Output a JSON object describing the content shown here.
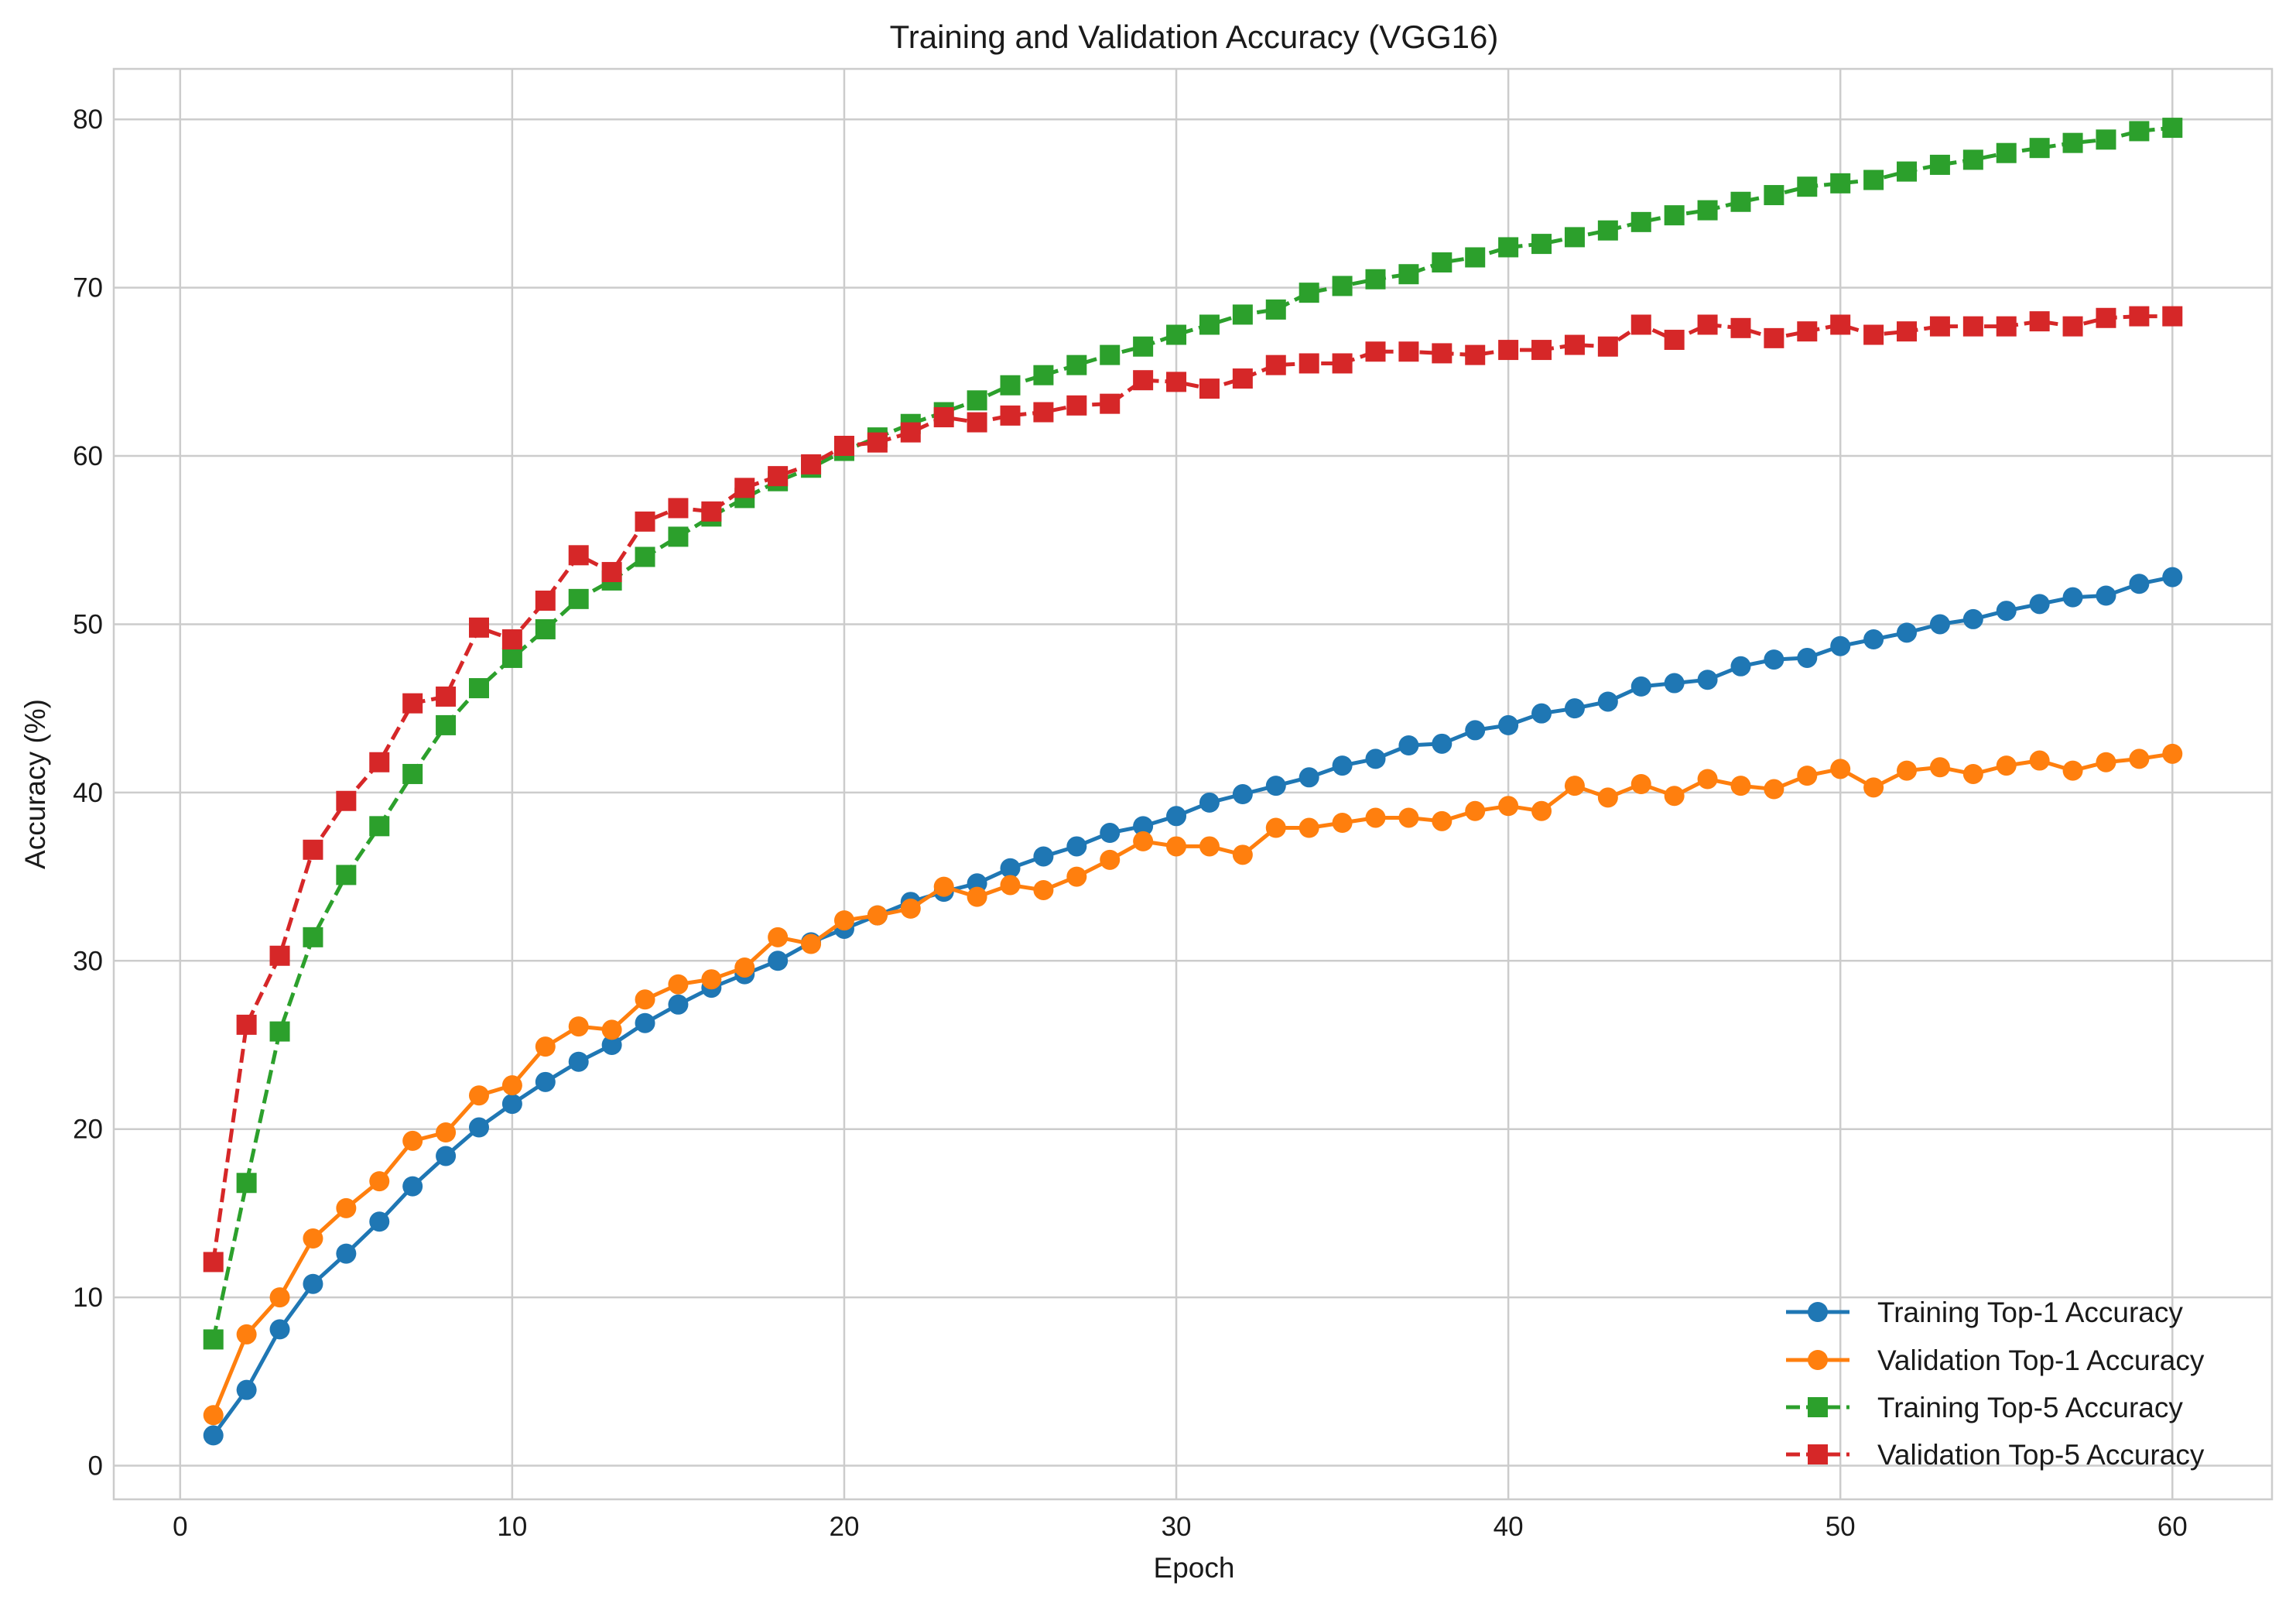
{
  "chart_data": {
    "type": "line",
    "title": "Training and Validation Accuracy (VGG16)",
    "xlabel": "Epoch",
    "ylabel": "Accuracy (%)",
    "xlim": [
      -2,
      63
    ],
    "ylim": [
      -2,
      83
    ],
    "xticks": [
      0,
      10,
      20,
      30,
      40,
      50,
      60
    ],
    "yticks": [
      0,
      10,
      20,
      30,
      40,
      50,
      60,
      70,
      80
    ],
    "grid": true,
    "legend_position": "lower-right",
    "x": [
      1,
      2,
      3,
      4,
      5,
      6,
      7,
      8,
      9,
      10,
      11,
      12,
      13,
      14,
      15,
      16,
      17,
      18,
      19,
      20,
      21,
      22,
      23,
      24,
      25,
      26,
      27,
      28,
      29,
      30,
      31,
      32,
      33,
      34,
      35,
      36,
      37,
      38,
      39,
      40,
      41,
      42,
      43,
      44,
      45,
      46,
      47,
      48,
      49,
      50,
      51,
      52,
      53,
      54,
      55,
      56,
      57,
      58,
      59,
      60
    ],
    "series": [
      {
        "name": "Training Top-1 Accuracy",
        "color": "#1f77b4",
        "marker": "circle",
        "linestyle": "solid",
        "values": [
          1.8,
          4.5,
          8.1,
          10.8,
          12.6,
          14.5,
          16.6,
          18.4,
          20.1,
          21.5,
          22.8,
          24.0,
          25.0,
          26.3,
          27.4,
          28.4,
          29.2,
          30.0,
          31.1,
          31.9,
          32.7,
          33.5,
          34.1,
          34.6,
          35.5,
          36.2,
          36.8,
          37.6,
          38.0,
          38.6,
          39.4,
          39.9,
          40.4,
          40.9,
          41.6,
          42.0,
          42.8,
          42.9,
          43.7,
          44.0,
          44.7,
          45.0,
          45.4,
          46.3,
          46.5,
          46.7,
          47.5,
          47.9,
          48.0,
          48.7,
          49.1,
          49.5,
          50.0,
          50.3,
          50.8,
          51.2,
          51.6,
          51.7,
          52.4,
          52.8
        ]
      },
      {
        "name": "Validation Top-1 Accuracy",
        "color": "#ff7f0e",
        "marker": "circle",
        "linestyle": "solid",
        "values": [
          3.0,
          7.8,
          10.0,
          13.5,
          15.3,
          16.9,
          19.3,
          19.8,
          22.0,
          22.6,
          24.9,
          26.1,
          25.9,
          27.7,
          28.6,
          28.9,
          29.6,
          31.4,
          31.0,
          32.4,
          32.7,
          33.1,
          34.4,
          33.8,
          34.5,
          34.2,
          35.0,
          36.0,
          37.1,
          36.8,
          36.8,
          36.3,
          37.9,
          37.9,
          38.2,
          38.5,
          38.5,
          38.3,
          38.9,
          39.2,
          38.9,
          40.4,
          39.7,
          40.5,
          39.8,
          40.8,
          40.4,
          40.2,
          41.0,
          41.4,
          40.3,
          41.3,
          41.5,
          41.1,
          41.6,
          41.9,
          41.3,
          41.8,
          42.0,
          42.3
        ]
      },
      {
        "name": "Training Top-5 Accuracy",
        "color": "#2ca02c",
        "marker": "square",
        "linestyle": "dashed",
        "values": [
          7.5,
          16.8,
          25.8,
          31.4,
          35.1,
          38.0,
          41.1,
          44.0,
          46.2,
          48.0,
          49.7,
          51.5,
          52.6,
          54.0,
          55.2,
          56.4,
          57.5,
          58.5,
          59.3,
          60.3,
          61.1,
          61.9,
          62.6,
          63.3,
          64.2,
          64.8,
          65.4,
          66.0,
          66.5,
          67.2,
          67.8,
          68.4,
          68.7,
          69.7,
          70.1,
          70.5,
          70.8,
          71.5,
          71.8,
          72.4,
          72.6,
          73.0,
          73.4,
          73.9,
          74.3,
          74.6,
          75.1,
          75.5,
          76.0,
          76.2,
          76.4,
          76.9,
          77.3,
          77.6,
          78.0,
          78.3,
          78.6,
          78.8,
          79.3,
          79.5
        ]
      },
      {
        "name": "Validation Top-5 Accuracy",
        "color": "#d62728",
        "marker": "square",
        "linestyle": "dashed",
        "values": [
          12.1,
          26.2,
          30.3,
          36.6,
          39.5,
          41.8,
          45.3,
          45.7,
          49.8,
          49.1,
          51.4,
          54.1,
          53.1,
          56.1,
          56.9,
          56.7,
          58.1,
          58.8,
          59.5,
          60.6,
          60.8,
          61.4,
          62.3,
          62.0,
          62.4,
          62.6,
          63.0,
          63.1,
          64.5,
          64.4,
          64.0,
          64.6,
          65.4,
          65.5,
          65.5,
          66.2,
          66.2,
          66.1,
          66.0,
          66.3,
          66.3,
          66.6,
          66.5,
          67.8,
          66.9,
          67.8,
          67.6,
          67.0,
          67.4,
          67.8,
          67.2,
          67.4,
          67.7,
          67.7,
          67.7,
          68.0,
          67.7,
          68.2,
          68.3,
          68.3
        ]
      }
    ]
  }
}
